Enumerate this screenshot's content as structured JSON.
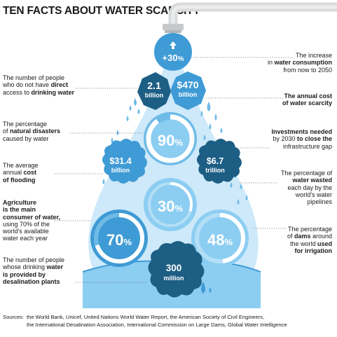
{
  "title": "TEN FACTS ABOUT WATER SCARCITY",
  "colors": {
    "dark": "#1d5e84",
    "mid": "#3f9bd5",
    "light": "#8ccdf2",
    "pale": "#cde9fa",
    "text": "#1a1a1a"
  },
  "facts": {
    "consumption": {
      "value": "+30",
      "unit": "%",
      "arrow": "up-arrow-icon",
      "text": [
        "The increase",
        [
          "in ",
          "water consumption"
        ],
        "from now to 2050"
      ]
    },
    "people_no_access": {
      "value": "2.1",
      "unit": "billion",
      "text": [
        "The number of people",
        [
          "who do not have",
          " direct"
        ],
        [
          "access to ",
          "drinking water"
        ]
      ]
    },
    "annual_cost": {
      "value": "$470",
      "unit": "billion",
      "text": [
        [
          "",
          "The annual cost"
        ],
        [
          "",
          "of water scarcity"
        ]
      ]
    },
    "natural_disasters": {
      "value": "90",
      "unit": "%",
      "text": [
        "The percentage",
        [
          "of ",
          "natural disasters"
        ],
        "caused by water"
      ]
    },
    "investments": {
      "text": [
        [
          "",
          "Investments needed"
        ],
        [
          "by 2030",
          " to close the"
        ],
        "infrastructure gap"
      ]
    },
    "flooding_cost": {
      "value": "$31.4",
      "unit": "billion",
      "text": [
        "The average",
        [
          "annual ",
          "cost"
        ],
        [
          "",
          "of flooding"
        ]
      ]
    },
    "investments_value": {
      "value": "$6.7",
      "unit": "trillion"
    },
    "water_wasted": {
      "value": "30",
      "unit": "%",
      "text": [
        "The percentage of",
        [
          "",
          "water wasted"
        ],
        "each day by the",
        "world's water",
        "pipelines"
      ]
    },
    "agriculture": {
      "value": "70",
      "unit": "%",
      "text": [
        [
          "",
          "Agriculture"
        ],
        [
          "",
          "is the main"
        ],
        [
          "",
          "consumer of water,"
        ],
        "using 70% of the",
        "world's available",
        "water each year"
      ]
    },
    "dams": {
      "value": "48",
      "unit": "%",
      "text": [
        "The percentage",
        [
          "of ",
          "dams",
          " around"
        ],
        [
          "the world ",
          "used"
        ],
        [
          "",
          "for irrigation"
        ]
      ]
    },
    "desalination": {
      "value": "300",
      "unit": "million",
      "text": [
        "The number of people",
        [
          "whose drinking ",
          "water"
        ],
        [
          "",
          "is provided by"
        ],
        [
          "",
          "desalination plants"
        ]
      ]
    }
  },
  "sources": {
    "key": "Sources:",
    "line1": "the World Bank, Unicef, United Nations World Water Report, the American Society of Civil Engineers,",
    "line2": "the International Desalination Association, International Commission on Large Dams, Global Water Intelligence"
  }
}
